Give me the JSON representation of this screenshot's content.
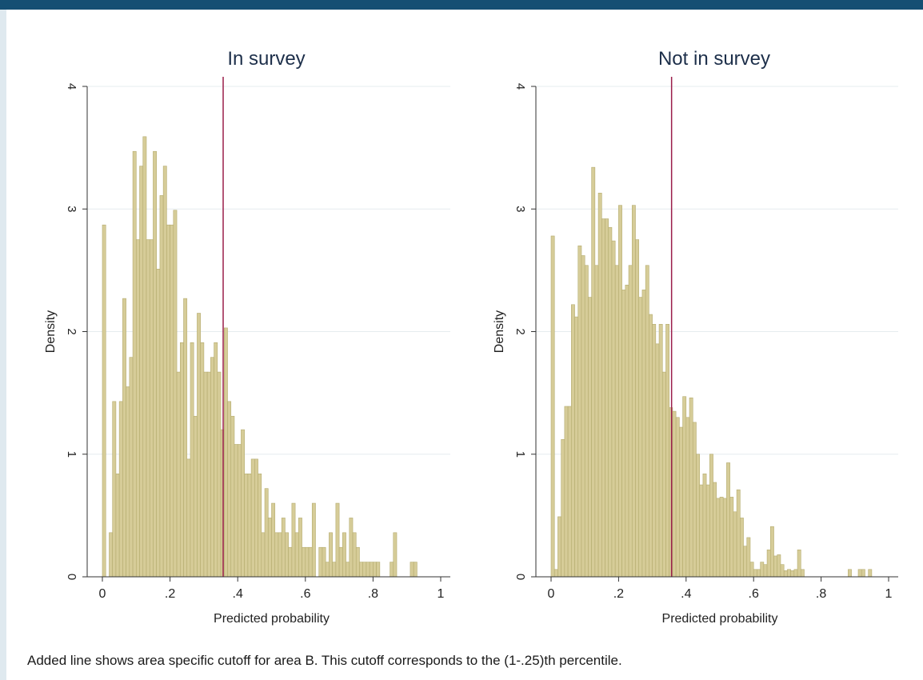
{
  "note": "Added line shows area specific cutoff for area B. This cutoff corresponds to the (1-.25)th percentile.",
  "colors": {
    "bar_fill": "#d6cc98",
    "bar_stroke": "#b4ab6e",
    "cutoff_line": "#9b1d4a",
    "gridline": "#e6ecef",
    "axis": "#333333",
    "title": "#1d2f4a"
  },
  "chart_data": [
    {
      "type": "bar",
      "title": "In survey",
      "xlabel": "Predicted probability",
      "ylabel": "Density",
      "xlim": [
        0,
        1
      ],
      "ylim": [
        0,
        4
      ],
      "xticks": [
        0,
        0.2,
        0.4,
        0.6,
        0.8,
        1
      ],
      "xtick_labels": [
        "0",
        ".2",
        ".4",
        ".6",
        ".8",
        "1"
      ],
      "yticks": [
        0,
        1,
        2,
        3,
        4
      ],
      "ytick_labels": [
        "0",
        "1",
        "2",
        "3",
        "4"
      ],
      "grid": true,
      "cutoff": 0.357,
      "bin_width": 0.01,
      "x": [
        0.005,
        0.015,
        0.025,
        0.035,
        0.045,
        0.055,
        0.065,
        0.075,
        0.085,
        0.095,
        0.105,
        0.115,
        0.125,
        0.135,
        0.145,
        0.155,
        0.165,
        0.175,
        0.185,
        0.195,
        0.205,
        0.215,
        0.225,
        0.235,
        0.245,
        0.255,
        0.265,
        0.275,
        0.285,
        0.295,
        0.305,
        0.315,
        0.325,
        0.335,
        0.345,
        0.355,
        0.365,
        0.375,
        0.385,
        0.395,
        0.405,
        0.415,
        0.425,
        0.435,
        0.445,
        0.455,
        0.465,
        0.475,
        0.485,
        0.495,
        0.505,
        0.515,
        0.525,
        0.535,
        0.545,
        0.555,
        0.565,
        0.575,
        0.585,
        0.595,
        0.605,
        0.615,
        0.625,
        0.635,
        0.645,
        0.655,
        0.665,
        0.675,
        0.685,
        0.695,
        0.705,
        0.715,
        0.725,
        0.735,
        0.745,
        0.755,
        0.765,
        0.775,
        0.785,
        0.795,
        0.805,
        0.815,
        0.825,
        0.835,
        0.845,
        0.855,
        0.865,
        0.875,
        0.885,
        0.895,
        0.905,
        0.915,
        0.925,
        0.935,
        0.945,
        0.955,
        0.965,
        0.975,
        0.985,
        0.995
      ],
      "values": [
        2.87,
        0,
        0.36,
        1.43,
        0.84,
        1.43,
        2.27,
        1.55,
        1.79,
        3.47,
        2.75,
        3.35,
        3.59,
        2.75,
        2.75,
        3.47,
        2.51,
        3.11,
        3.35,
        2.87,
        2.87,
        2.99,
        1.67,
        1.91,
        2.27,
        0.96,
        1.91,
        1.31,
        2.15,
        1.91,
        1.67,
        1.67,
        1.79,
        1.91,
        1.67,
        1.2,
        2.03,
        1.43,
        1.31,
        1.08,
        1.08,
        1.2,
        0.84,
        0.84,
        0.96,
        0.96,
        0.84,
        0.36,
        0.72,
        0.48,
        0.6,
        0.36,
        0.36,
        0.48,
        0.36,
        0.24,
        0.6,
        0.36,
        0.48,
        0.24,
        0.24,
        0.24,
        0.6,
        0,
        0.24,
        0.24,
        0.12,
        0.36,
        0.12,
        0.6,
        0.24,
        0.36,
        0.12,
        0.48,
        0.36,
        0.24,
        0.12,
        0.12,
        0.12,
        0.12,
        0.12,
        0.12,
        0,
        0,
        0,
        0.12,
        0.36,
        0,
        0,
        0,
        0,
        0.12,
        0.12,
        0,
        0,
        0,
        0,
        0,
        0,
        0
      ]
    },
    {
      "type": "bar",
      "title": "Not in survey",
      "xlabel": "Predicted probability",
      "ylabel": "Density",
      "xlim": [
        0,
        1
      ],
      "ylim": [
        0,
        4
      ],
      "xticks": [
        0,
        0.2,
        0.4,
        0.6,
        0.8,
        1
      ],
      "xtick_labels": [
        "0",
        ".2",
        ".4",
        ".6",
        ".8",
        "1"
      ],
      "yticks": [
        0,
        1,
        2,
        3,
        4
      ],
      "ytick_labels": [
        "0",
        "1",
        "2",
        "3",
        "4"
      ],
      "grid": true,
      "cutoff": 0.357,
      "bin_width": 0.01,
      "x": [
        0.005,
        0.015,
        0.025,
        0.035,
        0.045,
        0.055,
        0.065,
        0.075,
        0.085,
        0.095,
        0.105,
        0.115,
        0.125,
        0.135,
        0.145,
        0.155,
        0.165,
        0.175,
        0.185,
        0.195,
        0.205,
        0.215,
        0.225,
        0.235,
        0.245,
        0.255,
        0.265,
        0.275,
        0.285,
        0.295,
        0.305,
        0.315,
        0.325,
        0.335,
        0.345,
        0.355,
        0.365,
        0.375,
        0.385,
        0.395,
        0.405,
        0.415,
        0.425,
        0.435,
        0.445,
        0.455,
        0.465,
        0.475,
        0.485,
        0.495,
        0.505,
        0.515,
        0.525,
        0.535,
        0.545,
        0.555,
        0.565,
        0.575,
        0.585,
        0.595,
        0.605,
        0.615,
        0.625,
        0.635,
        0.645,
        0.655,
        0.665,
        0.675,
        0.685,
        0.695,
        0.705,
        0.715,
        0.725,
        0.735,
        0.745,
        0.755,
        0.765,
        0.775,
        0.785,
        0.795,
        0.805,
        0.815,
        0.825,
        0.835,
        0.845,
        0.855,
        0.865,
        0.875,
        0.885,
        0.895,
        0.905,
        0.915,
        0.925,
        0.935,
        0.945,
        0.955,
        0.965,
        0.975,
        0.985,
        0.995
      ],
      "values": [
        2.78,
        0.06,
        0.49,
        1.12,
        1.39,
        1.39,
        2.22,
        2.12,
        2.7,
        2.62,
        2.54,
        2.28,
        3.34,
        2.54,
        3.13,
        2.92,
        2.92,
        2.85,
        2.74,
        2.54,
        3.03,
        2.34,
        2.38,
        2.54,
        3.03,
        2.75,
        2.28,
        2.34,
        2.54,
        2.14,
        2.06,
        1.9,
        2.06,
        1.67,
        2.06,
        1.38,
        1.35,
        1.3,
        1.22,
        1.47,
        1.3,
        1.46,
        1.26,
        1.0,
        0.75,
        0.84,
        0.75,
        1.0,
        0.77,
        0.64,
        0.65,
        0.64,
        0.93,
        0.65,
        0.53,
        0.71,
        0.48,
        0.25,
        0.32,
        0.12,
        0.06,
        0.06,
        0.12,
        0.1,
        0.22,
        0.41,
        0.17,
        0.18,
        0.1,
        0.05,
        0.06,
        0.05,
        0.06,
        0.22,
        0.06,
        0,
        0,
        0,
        0,
        0,
        0,
        0,
        0,
        0,
        0,
        0,
        0,
        0,
        0.06,
        0,
        0,
        0.06,
        0.06,
        0,
        0.06,
        0,
        0,
        0,
        0,
        0
      ]
    }
  ]
}
